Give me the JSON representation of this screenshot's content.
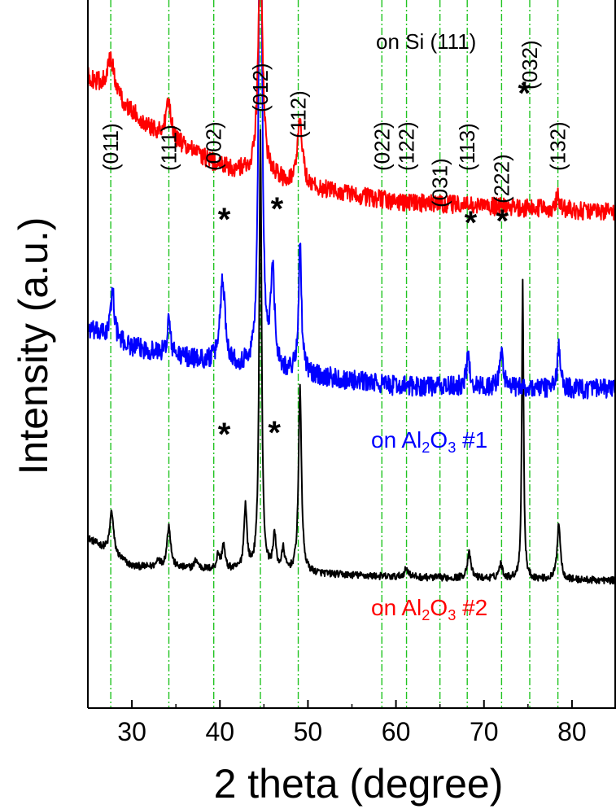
{
  "chart_data": {
    "type": "line",
    "xlabel": "2 theta (degree)",
    "ylabel": "Intensity (a.u.)",
    "xlim": [
      25,
      85
    ],
    "x_ticks": [
      30,
      40,
      50,
      60,
      70,
      80
    ],
    "y_ticks_shown": false,
    "grid": false,
    "reference_lines": [
      {
        "x": 27.6,
        "label": "(011)"
      },
      {
        "x": 34.2,
        "label": "(111)"
      },
      {
        "x": 39.3,
        "label": "(002)"
      },
      {
        "x": 44.6,
        "label": "(012)"
      },
      {
        "x": 48.9,
        "label": "(112)"
      },
      {
        "x": 58.4,
        "label": "(022)"
      },
      {
        "x": 61.2,
        "label": "(122)"
      },
      {
        "x": 65.0,
        "label": "(031)"
      },
      {
        "x": 68.1,
        "label": "(113)"
      },
      {
        "x": 72.0,
        "label": "(222)"
      },
      {
        "x": 75.2,
        "label": "(032)"
      },
      {
        "x": 78.4,
        "label": "(132)"
      }
    ],
    "substrate_peak_marks": [
      {
        "series": "on Si (111)",
        "x": 40.3,
        "symbol": "*"
      },
      {
        "series": "on Si (111)",
        "x": 46.3,
        "symbol": "*"
      },
      {
        "series": "on Si (111)",
        "x": 68.3,
        "symbol": "*"
      },
      {
        "series": "on Si (111)",
        "x": 71.9,
        "symbol": "*"
      },
      {
        "series": "on Si (111)",
        "x": 74.4,
        "symbol": "*"
      },
      {
        "series": "on Al2O3 #1",
        "x": 40.3,
        "symbol": "*"
      },
      {
        "series": "on Al2O3 #1",
        "x": 46.0,
        "symbol": "*"
      }
    ],
    "series": [
      {
        "name": "on Si (111)",
        "label_parts": [
          "on Si (111)"
        ],
        "color": "#000000",
        "baseline": 0.19,
        "noise": 0.005,
        "trend": [
          [
            25,
            0.24
          ],
          [
            30,
            0.2
          ],
          [
            40,
            0.195
          ],
          [
            60,
            0.185
          ],
          [
            85,
            0.18
          ]
        ],
        "peaks": [
          {
            "x": 27.7,
            "h": 0.06,
            "w": 0.25
          },
          {
            "x": 33.0,
            "h": 0.012,
            "w": 0.2
          },
          {
            "x": 34.2,
            "h": 0.06,
            "w": 0.25
          },
          {
            "x": 37.3,
            "h": 0.012,
            "w": 0.25
          },
          {
            "x": 39.8,
            "h": 0.02,
            "w": 0.2
          },
          {
            "x": 40.4,
            "h": 0.035,
            "w": 0.2
          },
          {
            "x": 42.9,
            "h": 0.09,
            "w": 0.2
          },
          {
            "x": 44.6,
            "h": 0.62,
            "w": 0.16
          },
          {
            "x": 46.2,
            "h": 0.05,
            "w": 0.2
          },
          {
            "x": 47.2,
            "h": 0.03,
            "w": 0.2
          },
          {
            "x": 49.1,
            "h": 0.26,
            "w": 0.2
          },
          {
            "x": 61.2,
            "h": 0.012,
            "w": 0.3
          },
          {
            "x": 68.3,
            "h": 0.035,
            "w": 0.25
          },
          {
            "x": 71.9,
            "h": 0.02,
            "w": 0.25
          },
          {
            "x": 74.4,
            "h": 0.42,
            "w": 0.12
          },
          {
            "x": 78.5,
            "h": 0.08,
            "w": 0.22
          }
        ]
      },
      {
        "name": "on Al2O3 #1",
        "label_parts": [
          "on Al",
          "2",
          "O",
          "3",
          " #1"
        ],
        "color": "#0000ff",
        "baseline": 0.46,
        "noise": 0.014,
        "trend": [
          [
            25,
            0.535
          ],
          [
            30,
            0.51
          ],
          [
            40,
            0.485
          ],
          [
            50,
            0.47
          ],
          [
            60,
            0.455
          ],
          [
            85,
            0.45
          ]
        ],
        "peaks": [
          {
            "x": 27.8,
            "h": 0.07,
            "w": 0.25
          },
          {
            "x": 34.2,
            "h": 0.05,
            "w": 0.2
          },
          {
            "x": 40.3,
            "h": 0.12,
            "w": 0.35
          },
          {
            "x": 44.6,
            "h": 0.88,
            "w": 0.2
          },
          {
            "x": 46.0,
            "h": 0.14,
            "w": 0.25
          },
          {
            "x": 49.1,
            "h": 0.18,
            "w": 0.2
          },
          {
            "x": 68.2,
            "h": 0.04,
            "w": 0.25
          },
          {
            "x": 72.0,
            "h": 0.05,
            "w": 0.25
          },
          {
            "x": 78.5,
            "h": 0.06,
            "w": 0.2
          }
        ]
      },
      {
        "name": "on Al2O3 #2",
        "label_parts": [
          "on Al",
          "2",
          "O",
          "3",
          " #2"
        ],
        "color": "#ff0000",
        "baseline": 0.7,
        "noise": 0.013,
        "trend": [
          [
            25,
            0.89
          ],
          [
            28,
            0.86
          ],
          [
            32,
            0.82
          ],
          [
            40,
            0.765
          ],
          [
            50,
            0.735
          ],
          [
            60,
            0.715
          ],
          [
            85,
            0.7
          ]
        ],
        "peaks": [
          {
            "x": 27.6,
            "h": 0.05,
            "w": 0.6
          },
          {
            "x": 34.2,
            "h": 0.05,
            "w": 0.35
          },
          {
            "x": 44.6,
            "h": 0.32,
            "w": 0.3
          },
          {
            "x": 49.1,
            "h": 0.09,
            "w": 0.35
          },
          {
            "x": 78.4,
            "h": 0.02,
            "w": 0.3
          }
        ]
      }
    ]
  }
}
